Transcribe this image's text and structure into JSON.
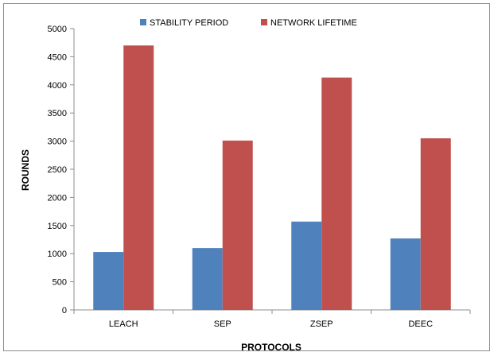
{
  "chart_data": {
    "type": "bar",
    "title": "",
    "xlabel": "PROTOCOLS",
    "ylabel": "ROUNDS",
    "categories": [
      "LEACH",
      "SEP",
      "ZSEP",
      "DEEC"
    ],
    "series": [
      {
        "name": "STABILITY PERIOD",
        "values": [
          1030,
          1100,
          1570,
          1270
        ],
        "color": "#4f81bd"
      },
      {
        "name": "NETWORK LIFETIME",
        "values": [
          4700,
          3010,
          4130,
          3050
        ],
        "color": "#c0504d"
      }
    ],
    "ylim": [
      0,
      5000
    ],
    "yticks": [
      "0",
      "500",
      "1000",
      "1500",
      "2000",
      "2500",
      "3000",
      "3500",
      "4000",
      "4500",
      "5000"
    ],
    "grid": false,
    "legend_position": "top"
  }
}
